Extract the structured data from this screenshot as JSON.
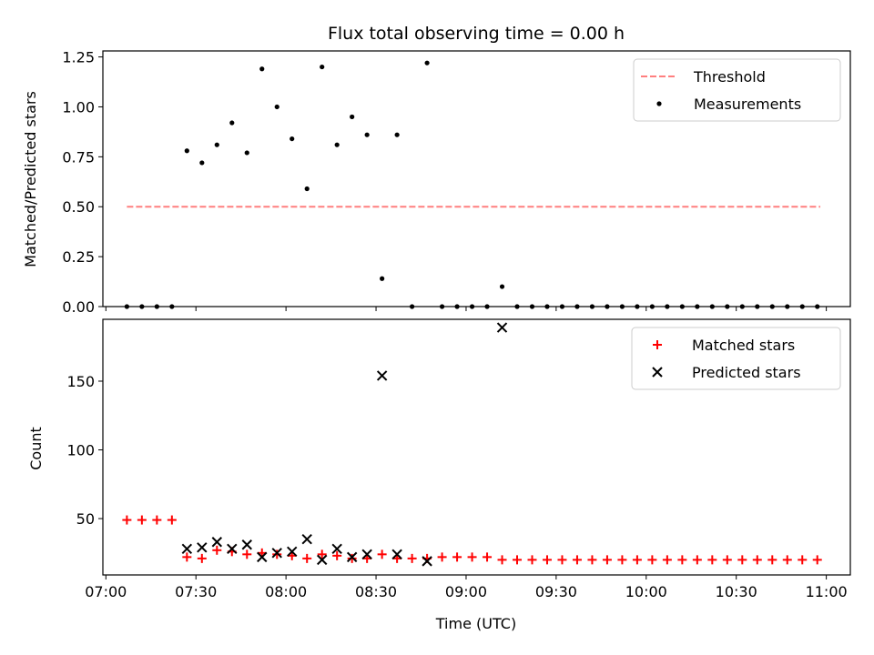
{
  "chart_data": [
    {
      "type": "scatter",
      "title": "Flux total observing time = 0.00 h",
      "ylabel": "Matched/Predicted stars",
      "ylim": [
        0,
        1.28
      ],
      "yticks": [
        0,
        0.25,
        0.5,
        0.75,
        1.0,
        1.25
      ],
      "ytick_labels": [
        "0.00",
        "0.25",
        "0.50",
        "0.75",
        "1.00",
        "1.25"
      ],
      "grid": false,
      "legend_position": "top-right",
      "series": [
        {
          "name": "Threshold",
          "kind": "line",
          "style": "dashed",
          "color": "#ff7f7f",
          "x": [
            "07:07",
            "10:58"
          ],
          "y": [
            0.5,
            0.5
          ]
        },
        {
          "name": "Measurements",
          "kind": "scatter",
          "color": "#000000",
          "x": [
            "07:07",
            "07:12",
            "07:17",
            "07:22",
            "07:27",
            "07:32",
            "07:37",
            "07:42",
            "07:47",
            "07:52",
            "07:57",
            "08:02",
            "08:07",
            "08:12",
            "08:17",
            "08:22",
            "08:27",
            "08:32",
            "08:37",
            "08:42",
            "08:47",
            "08:52",
            "08:57",
            "09:02",
            "09:07",
            "09:12",
            "09:17",
            "09:22",
            "09:27",
            "09:32",
            "09:37",
            "09:42",
            "09:47",
            "09:52",
            "09:57",
            "10:02",
            "10:07",
            "10:12",
            "10:17",
            "10:22",
            "10:27",
            "10:32",
            "10:37",
            "10:42",
            "10:47",
            "10:52",
            "10:57"
          ],
          "y": [
            0,
            0,
            0,
            0,
            0.78,
            0.72,
            0.81,
            0.92,
            0.77,
            1.19,
            1.0,
            0.84,
            0.59,
            1.2,
            0.81,
            0.95,
            0.86,
            0.14,
            0.86,
            0,
            1.22,
            0,
            0,
            0,
            0,
            0.1,
            0,
            0,
            0,
            0,
            0,
            0,
            0,
            0,
            0,
            0,
            0,
            0,
            0,
            0,
            0,
            0,
            0,
            0,
            0,
            0,
            0
          ]
        }
      ]
    },
    {
      "type": "scatter",
      "title": "",
      "xlabel": "Time (UTC)",
      "ylabel": "Count",
      "ylim": [
        9,
        195
      ],
      "yticks": [
        50,
        100,
        150
      ],
      "ytick_labels": [
        "50",
        "100",
        "150"
      ],
      "xticks": [
        "07:00",
        "07:30",
        "08:00",
        "08:30",
        "09:00",
        "09:30",
        "10:00",
        "10:30",
        "11:00"
      ],
      "grid": false,
      "legend_position": "top-right",
      "series": [
        {
          "name": "Matched stars",
          "marker": "plus",
          "color": "#ff0000",
          "x": [
            "07:07",
            "07:12",
            "07:17",
            "07:22",
            "07:27",
            "07:32",
            "07:37",
            "07:42",
            "07:47",
            "07:52",
            "07:57",
            "08:02",
            "08:07",
            "08:12",
            "08:17",
            "08:22",
            "08:27",
            "08:32",
            "08:37",
            "08:42",
            "08:47",
            "08:52",
            "08:57",
            "09:02",
            "09:07",
            "09:12",
            "09:17",
            "09:22",
            "09:27",
            "09:32",
            "09:37",
            "09:42",
            "09:47",
            "09:52",
            "09:57",
            "10:02",
            "10:07",
            "10:12",
            "10:17",
            "10:22",
            "10:27",
            "10:32",
            "10:37",
            "10:42",
            "10:47",
            "10:52",
            "10:57"
          ],
          "y": [
            49,
            49,
            49,
            49,
            22,
            21,
            27,
            26,
            24,
            25,
            24,
            23,
            21,
            24,
            23,
            21,
            21,
            24,
            21,
            21,
            21,
            22,
            22,
            22,
            22,
            20,
            20,
            20,
            20,
            20,
            20,
            20,
            20,
            20,
            20,
            20,
            20,
            20,
            20,
            20,
            20,
            20,
            20,
            20,
            20,
            20,
            20
          ]
        },
        {
          "name": "Predicted stars",
          "marker": "x",
          "color": "#000000",
          "x": [
            "07:27",
            "07:32",
            "07:37",
            "07:42",
            "07:47",
            "07:52",
            "07:57",
            "08:02",
            "08:07",
            "08:12",
            "08:17",
            "08:22",
            "08:27",
            "08:32",
            "08:37",
            "08:47",
            "09:12"
          ],
          "y": [
            28,
            29,
            33,
            28,
            31,
            22,
            25,
            26,
            35,
            20,
            28,
            22,
            24,
            154,
            24,
            19,
            189
          ]
        }
      ]
    }
  ]
}
